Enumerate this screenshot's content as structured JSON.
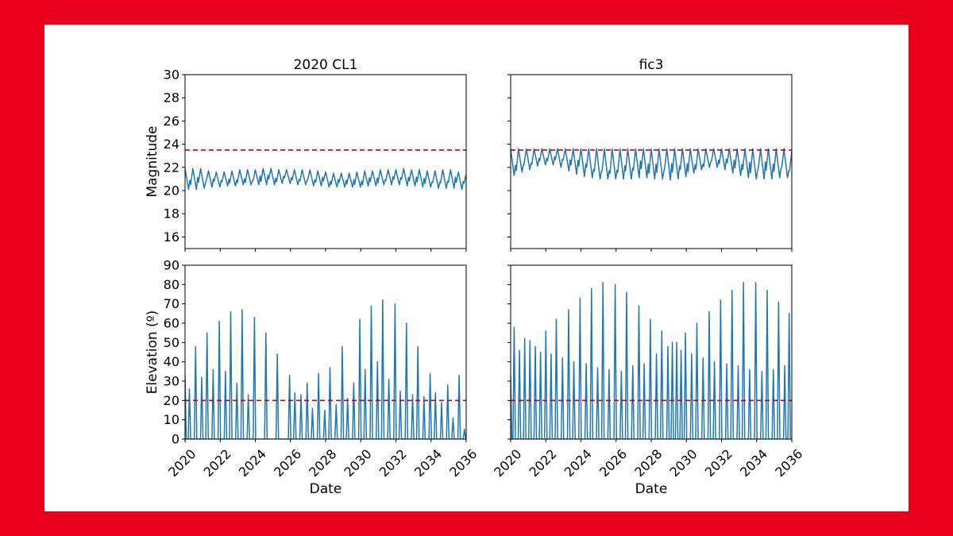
{
  "colors": {
    "frame": "#e8001c",
    "line": "#1f77b4",
    "threshold": "#cc0000"
  },
  "chart_data": [
    {
      "type": "line",
      "title": "2020 CL1",
      "xlabel": "",
      "ylabel": "Magnitude",
      "xlim": [
        2020,
        2036
      ],
      "ylim": [
        15,
        30
      ],
      "xticks": [],
      "yticks": [
        16,
        18,
        20,
        22,
        24,
        26,
        28,
        30
      ],
      "threshold": 23.5,
      "series": [
        {
          "name": "magnitude",
          "mode": "osc",
          "count": 36,
          "seed": 1,
          "peaks": [
            21.9,
            21.9,
            21.9,
            21.7,
            21.6,
            21.6,
            21.7,
            21.8,
            21.8,
            21.8,
            21.9,
            21.9,
            21.8,
            21.8,
            21.8,
            21.8,
            21.8,
            21.7,
            21.6,
            21.5,
            21.5,
            21.5,
            21.6,
            21.7,
            21.7,
            21.8,
            21.8,
            21.8,
            21.9,
            21.8,
            21.8,
            21.7,
            21.7,
            21.8,
            21.8,
            21.6
          ],
          "troughs": [
            20.1,
            20.1,
            20.2,
            20.3,
            20.3,
            20.4,
            20.4,
            20.5,
            20.5,
            20.5,
            20.5,
            20.5,
            20.6,
            20.6,
            20.5,
            20.5,
            20.4,
            20.4,
            20.3,
            20.3,
            20.3,
            20.3,
            20.3,
            20.4,
            20.4,
            20.5,
            20.5,
            20.5,
            20.4,
            20.4,
            20.3,
            20.3,
            20.2,
            20.2,
            20.2,
            20.1
          ],
          "values": []
        }
      ]
    },
    {
      "type": "line",
      "title": "fic3",
      "xlabel": "",
      "ylabel": "",
      "xlim": [
        2020,
        2036
      ],
      "ylim": [
        15,
        30
      ],
      "xticks": [],
      "yticks": [],
      "threshold": 23.5,
      "series": [
        {
          "name": "magnitude",
          "mode": "osc",
          "count": 36,
          "seed": 2,
          "peaks": [
            23.6,
            23.6,
            23.6,
            23.6,
            23.6,
            23.6,
            23.6,
            23.6,
            23.6,
            23.6,
            23.6,
            23.6,
            23.6,
            23.6,
            23.6,
            23.6,
            23.6,
            23.6,
            23.6,
            23.6,
            23.6,
            23.6,
            23.6,
            23.6,
            23.6,
            23.6,
            23.6,
            23.6,
            23.6,
            23.6,
            23.6,
            23.6,
            23.6,
            23.6,
            23.6,
            23.6
          ],
          "troughs": [
            21.3,
            21.6,
            21.8,
            22.1,
            22.2,
            22.2,
            22.0,
            21.7,
            21.4,
            21.2,
            21.1,
            21.0,
            21.0,
            21.0,
            21.0,
            21.0,
            21.1,
            21.1,
            21.0,
            21.0,
            20.9,
            21.0,
            21.2,
            21.5,
            21.8,
            22.0,
            22.0,
            21.8,
            21.5,
            21.3,
            21.1,
            21.0,
            21.0,
            21.0,
            21.1,
            21.1
          ],
          "values": []
        }
      ]
    },
    {
      "type": "line",
      "title": "",
      "xlabel": "Date",
      "ylabel": "Elevation (º)",
      "xlim": [
        2020,
        2036
      ],
      "ylim": [
        0,
        90
      ],
      "xticks": [
        2020,
        2022,
        2024,
        2026,
        2028,
        2030,
        2032,
        2034,
        2036
      ],
      "yticks": [
        0,
        10,
        20,
        30,
        40,
        50,
        60,
        70,
        80,
        90
      ],
      "threshold": 20,
      "series": [
        {
          "name": "elevation",
          "mode": "spike",
          "spikes": [
            [
              2020.0,
              33
            ],
            [
              2020.25,
              26
            ],
            [
              2020.6,
              48
            ],
            [
              2020.95,
              32
            ],
            [
              2021.25,
              55
            ],
            [
              2021.6,
              36
            ],
            [
              2021.95,
              61
            ],
            [
              2022.3,
              35
            ],
            [
              2022.6,
              66
            ],
            [
              2022.95,
              29
            ],
            [
              2023.25,
              67
            ],
            [
              2023.6,
              23
            ],
            [
              2023.95,
              63
            ],
            [
              2024.6,
              55
            ],
            [
              2025.25,
              44
            ],
            [
              2025.95,
              33
            ],
            [
              2026.25,
              24
            ],
            [
              2026.6,
              23
            ],
            [
              2026.95,
              29
            ],
            [
              2027.25,
              16
            ],
            [
              2027.6,
              34
            ],
            [
              2027.95,
              15
            ],
            [
              2028.25,
              37
            ],
            [
              2028.6,
              18
            ],
            [
              2028.95,
              48
            ],
            [
              2029.25,
              21
            ],
            [
              2029.6,
              29
            ],
            [
              2029.95,
              62
            ],
            [
              2030.25,
              36
            ],
            [
              2030.6,
              69
            ],
            [
              2030.95,
              40
            ],
            [
              2031.25,
              72
            ],
            [
              2031.6,
              31
            ],
            [
              2031.95,
              70
            ],
            [
              2032.25,
              25
            ],
            [
              2032.6,
              60
            ],
            [
              2032.95,
              23
            ],
            [
              2033.25,
              48
            ],
            [
              2033.6,
              22
            ],
            [
              2033.95,
              34
            ],
            [
              2034.25,
              24
            ],
            [
              2034.6,
              19
            ],
            [
              2034.95,
              28
            ],
            [
              2035.25,
              11
            ],
            [
              2035.6,
              33
            ],
            [
              2035.9,
              5
            ]
          ],
          "values": []
        }
      ]
    },
    {
      "type": "line",
      "title": "",
      "xlabel": "Date",
      "ylabel": "",
      "xlim": [
        2020,
        2036
      ],
      "ylim": [
        0,
        90
      ],
      "xticks": [
        2020,
        2022,
        2024,
        2026,
        2028,
        2030,
        2032,
        2034,
        2036
      ],
      "yticks": [],
      "threshold": 20,
      "series": [
        {
          "name": "elevation",
          "mode": "spike",
          "spikes": [
            [
              2020.0,
              33
            ],
            [
              2020.2,
              58
            ],
            [
              2020.5,
              46
            ],
            [
              2020.8,
              52
            ],
            [
              2021.1,
              51
            ],
            [
              2021.4,
              48
            ],
            [
              2021.7,
              45
            ],
            [
              2022.0,
              56
            ],
            [
              2022.3,
              44
            ],
            [
              2022.6,
              62
            ],
            [
              2022.95,
              42
            ],
            [
              2023.3,
              67
            ],
            [
              2023.6,
              40
            ],
            [
              2023.95,
              73
            ],
            [
              2024.3,
              39
            ],
            [
              2024.6,
              78
            ],
            [
              2024.95,
              37
            ],
            [
              2025.25,
              81
            ],
            [
              2025.6,
              36
            ],
            [
              2025.95,
              80
            ],
            [
              2026.3,
              35
            ],
            [
              2026.6,
              76
            ],
            [
              2026.95,
              38
            ],
            [
              2027.3,
              69
            ],
            [
              2027.6,
              39
            ],
            [
              2027.95,
              62
            ],
            [
              2028.3,
              44
            ],
            [
              2028.6,
              56
            ],
            [
              2028.95,
              48
            ],
            [
              2029.2,
              50
            ],
            [
              2029.45,
              50
            ],
            [
              2029.7,
              46
            ],
            [
              2029.95,
              55
            ],
            [
              2030.3,
              44
            ],
            [
              2030.6,
              60
            ],
            [
              2030.95,
              42
            ],
            [
              2031.3,
              66
            ],
            [
              2031.6,
              40
            ],
            [
              2031.95,
              72
            ],
            [
              2032.3,
              39
            ],
            [
              2032.6,
              77
            ],
            [
              2032.95,
              38
            ],
            [
              2033.25,
              81
            ],
            [
              2033.6,
              36
            ],
            [
              2033.95,
              81
            ],
            [
              2034.3,
              35
            ],
            [
              2034.6,
              77
            ],
            [
              2034.95,
              36
            ],
            [
              2035.25,
              71
            ],
            [
              2035.6,
              38
            ],
            [
              2035.85,
              65
            ]
          ],
          "values": []
        }
      ]
    }
  ]
}
